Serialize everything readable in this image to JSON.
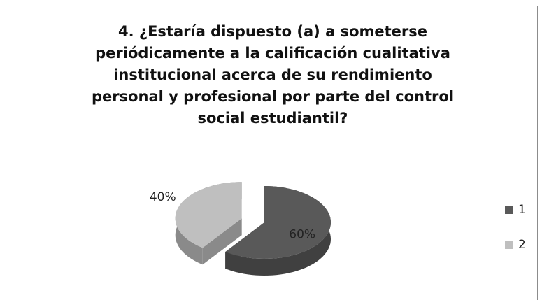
{
  "chart_data": {
    "type": "pie",
    "title": "4. ¿Estaría dispuesto (a) a someterse periódicamente a la calificación cualitativa institucional acerca de su rendimiento personal y profesional por parte del control social estudiantil?",
    "categories": [
      "1",
      "2"
    ],
    "values": [
      60,
      40
    ],
    "value_labels": [
      "60%",
      "40%"
    ],
    "colors": [
      "#595959",
      "#bfbfbf"
    ],
    "legend": "right"
  }
}
